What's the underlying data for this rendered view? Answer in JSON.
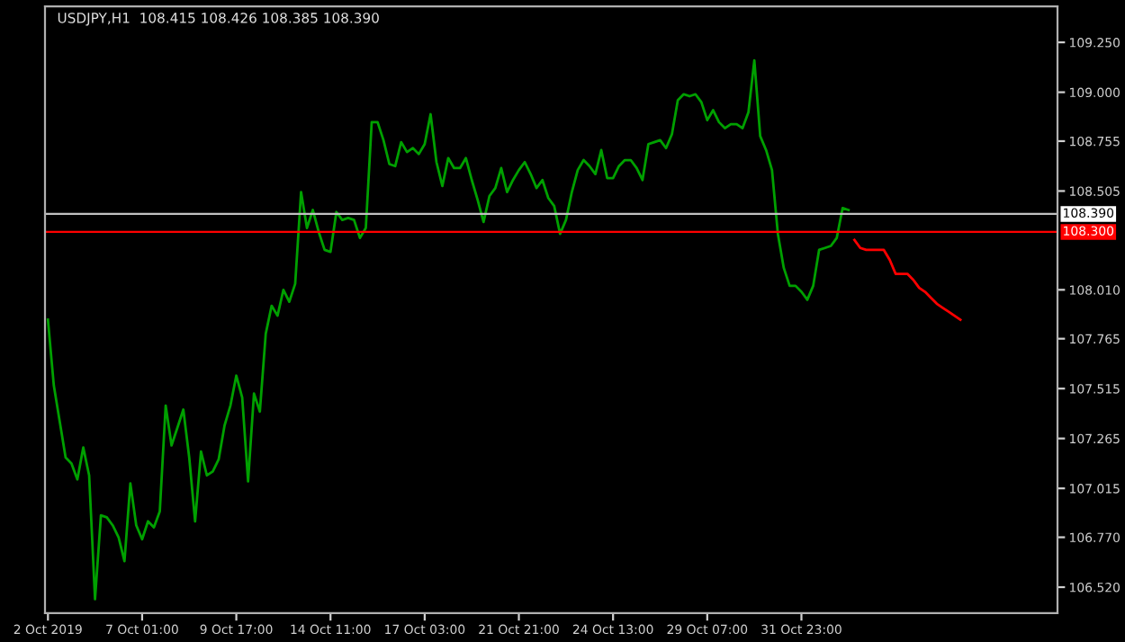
{
  "chart_data": {
    "type": "line",
    "title": "USDJPY,H1  108.415 108.426 108.385 108.390",
    "ylim": [
      106.39,
      109.43
    ],
    "categories": [
      "2 Oct 2019",
      null,
      null,
      null,
      null,
      null,
      null,
      null,
      null,
      null,
      null,
      null,
      null,
      null,
      null,
      null,
      "7 Oct 01:00",
      null,
      null,
      null,
      null,
      null,
      null,
      null,
      null,
      null,
      null,
      null,
      null,
      null,
      null,
      null,
      "9 Oct 17:00",
      null,
      null,
      null,
      null,
      null,
      null,
      null,
      null,
      null,
      null,
      null,
      null,
      null,
      null,
      null,
      "14 Oct 11:00",
      null,
      null,
      null,
      null,
      null,
      null,
      null,
      null,
      null,
      null,
      null,
      null,
      null,
      null,
      null,
      "17 Oct 03:00",
      null,
      null,
      null,
      null,
      null,
      null,
      null,
      null,
      null,
      null,
      null,
      null,
      null,
      null,
      null,
      "21 Oct 21:00",
      null,
      null,
      null,
      null,
      null,
      null,
      null,
      null,
      null,
      null,
      null,
      null,
      null,
      null,
      null,
      "24 Oct 13:00",
      null,
      null,
      null,
      null,
      null,
      null,
      null,
      null,
      null,
      null,
      null,
      null,
      null,
      null,
      null,
      "29 Oct 07:00",
      null,
      null,
      null,
      null,
      null,
      null,
      null,
      null,
      null,
      null,
      null,
      null,
      null,
      null,
      null,
      "31 Oct 23:00",
      null,
      null,
      null,
      null,
      null,
      null,
      null,
      null,
      null,
      null,
      null,
      null,
      null,
      null,
      null,
      null,
      null,
      null,
      null,
      null,
      null,
      null,
      null,
      null,
      null,
      null,
      null,
      null,
      null,
      null,
      null,
      null,
      null,
      null,
      null,
      null,
      null,
      null,
      null,
      null,
      null,
      null,
      null
    ],
    "yticks": [
      {
        "value": 109.25,
        "label": "109.250"
      },
      {
        "value": 109.0,
        "label": "109.000"
      },
      {
        "value": 108.755,
        "label": "108.755"
      },
      {
        "value": 108.505,
        "label": "108.505"
      },
      {
        "value": 108.01,
        "label": "108.010"
      },
      {
        "value": 107.765,
        "label": "107.765"
      },
      {
        "value": 107.515,
        "label": "107.515"
      },
      {
        "value": 107.265,
        "label": "107.265"
      },
      {
        "value": 107.015,
        "label": "107.015"
      },
      {
        "value": 106.77,
        "label": "106.770"
      },
      {
        "value": 106.52,
        "label": "106.520"
      }
    ],
    "grid": false,
    "legend": false,
    "ref_lines": [
      {
        "axis": "y",
        "value": 108.39,
        "label": "108.390",
        "color": "#c0c0c0"
      },
      {
        "axis": "y",
        "value": 108.3,
        "label": "108.300",
        "color": "#ff0000"
      }
    ],
    "series": [
      {
        "color": "#00a000",
        "values": [
          107.86,
          107.53,
          107.35,
          107.17,
          107.14,
          107.06,
          107.22,
          107.08,
          106.46,
          106.88,
          106.87,
          106.83,
          106.77,
          106.65,
          107.04,
          106.83,
          106.76,
          106.85,
          106.82,
          106.9,
          107.43,
          107.23,
          107.32,
          107.41,
          107.17,
          106.85,
          107.2,
          107.08,
          107.1,
          107.16,
          107.33,
          107.43,
          107.58,
          107.47,
          107.05,
          107.49,
          107.4,
          107.79,
          107.93,
          107.88,
          108.01,
          107.95,
          108.04,
          108.5,
          108.32,
          108.41,
          108.3,
          108.21,
          108.2,
          108.4,
          108.36,
          108.37,
          108.36,
          108.27,
          108.32,
          108.85,
          108.85,
          108.76,
          108.64,
          108.63,
          108.75,
          108.7,
          108.72,
          108.69,
          108.74,
          108.89,
          108.65,
          108.53,
          108.67,
          108.62,
          108.62,
          108.67,
          108.56,
          108.46,
          108.35,
          108.48,
          108.52,
          108.62,
          108.5,
          108.56,
          108.61,
          108.65,
          108.59,
          108.52,
          108.56,
          108.47,
          108.43,
          108.29,
          108.36,
          108.5,
          108.61,
          108.66,
          108.63,
          108.59,
          108.71,
          108.57,
          108.57,
          108.63,
          108.66,
          108.66,
          108.62,
          108.56,
          108.74,
          108.75,
          108.76,
          108.72,
          108.79,
          108.96,
          108.99,
          108.98,
          108.99,
          108.95,
          108.86,
          108.91,
          108.85,
          108.82,
          108.84,
          108.84,
          108.82,
          108.9,
          109.16,
          108.78,
          108.71,
          108.61,
          108.29,
          108.12,
          108.03,
          108.03,
          108.0,
          107.96,
          108.03,
          108.21,
          108.22,
          108.23,
          108.27,
          108.42,
          108.41,
          null,
          null,
          null,
          null,
          null,
          null,
          null,
          null,
          null,
          null,
          null,
          null,
          null,
          null,
          null,
          null,
          null,
          null,
          null,
          null,
          null,
          null,
          null,
          null,
          null,
          null,
          null,
          null,
          null,
          null,
          null,
          null,
          null,
          null,
          null
        ]
      },
      {
        "color": "#ff0000",
        "values": [
          null,
          null,
          null,
          null,
          null,
          null,
          null,
          null,
          null,
          null,
          null,
          null,
          null,
          null,
          null,
          null,
          null,
          null,
          null,
          null,
          null,
          null,
          null,
          null,
          null,
          null,
          null,
          null,
          null,
          null,
          null,
          null,
          null,
          null,
          null,
          null,
          null,
          null,
          null,
          null,
          null,
          null,
          null,
          null,
          null,
          null,
          null,
          null,
          null,
          null,
          null,
          null,
          null,
          null,
          null,
          null,
          null,
          null,
          null,
          null,
          null,
          null,
          null,
          null,
          null,
          null,
          null,
          null,
          null,
          null,
          null,
          null,
          null,
          null,
          null,
          null,
          null,
          null,
          null,
          null,
          null,
          null,
          null,
          null,
          null,
          null,
          null,
          null,
          null,
          null,
          null,
          null,
          null,
          null,
          null,
          null,
          null,
          null,
          null,
          null,
          null,
          null,
          null,
          null,
          null,
          null,
          null,
          null,
          null,
          null,
          null,
          null,
          null,
          null,
          null,
          null,
          null,
          null,
          null,
          null,
          null,
          null,
          null,
          null,
          null,
          null,
          null,
          null,
          null,
          null,
          null,
          null,
          null,
          null,
          null,
          null,
          null,
          108.26,
          108.22,
          108.21,
          108.21,
          108.21,
          108.21,
          108.16,
          108.09,
          108.09,
          108.09,
          108.06,
          108.02,
          108.0,
          107.97,
          107.94,
          107.92,
          107.9,
          107.88,
          107.86,
          null,
          null,
          null,
          null,
          null,
          null,
          null,
          null,
          null,
          null,
          null,
          null,
          null,
          null,
          null,
          null
        ]
      }
    ]
  }
}
